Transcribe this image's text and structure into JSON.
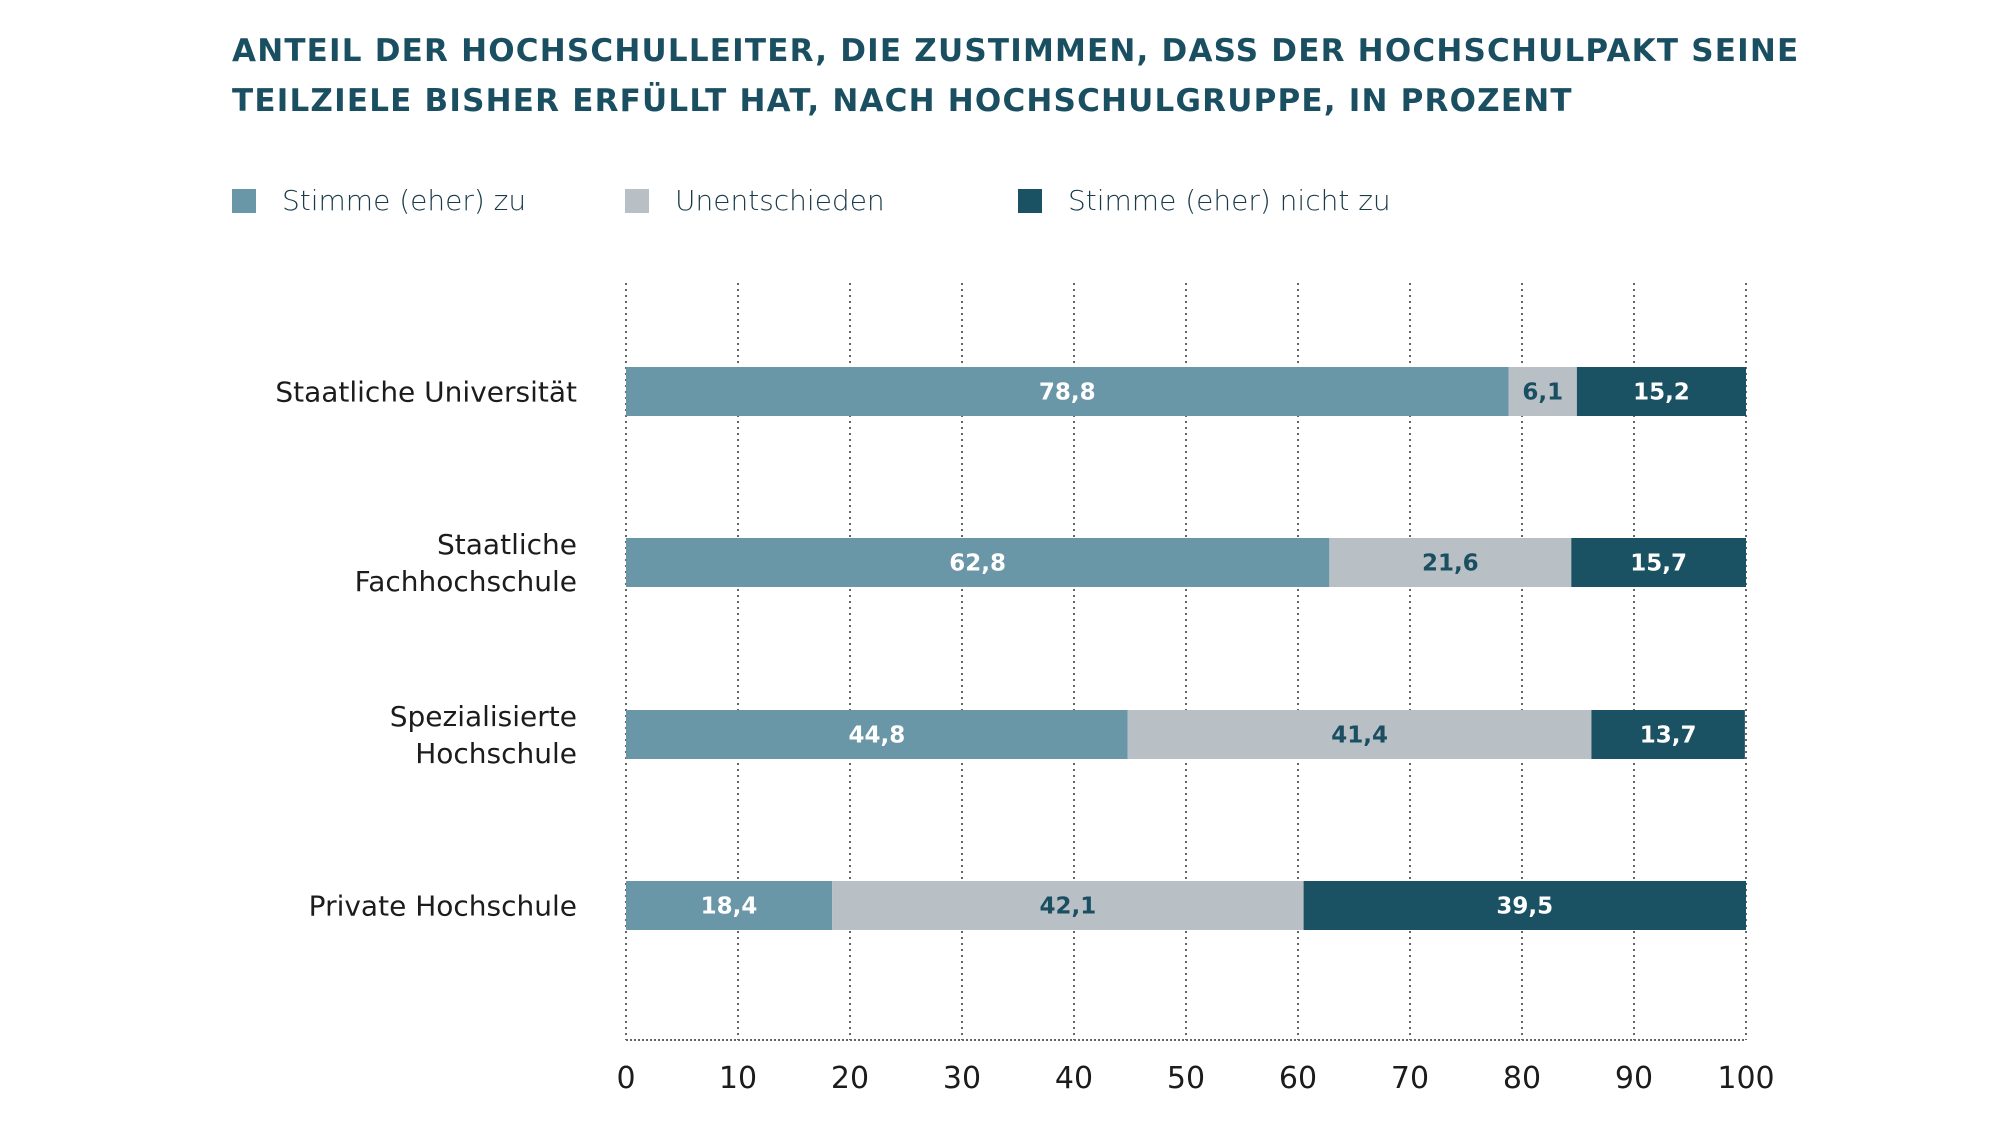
{
  "chart_data": {
    "type": "bar",
    "orientation": "horizontal",
    "stacked": true,
    "title_lines": [
      "ANTEIL DER HOCHSCHULLEITER, DIE ZUSTIMMEN, DASS DER HOCHSCHULPAKT SEINE",
      "TEILZIELE BISHER ERFÜLLT HAT, NACH HOCHSCHULGRUPPE, IN PROZENT"
    ],
    "categories": [
      [
        "Staatliche Universität"
      ],
      [
        "Staatliche",
        "Fachhochschule"
      ],
      [
        "Spezialisierte",
        "Hochschule"
      ],
      [
        "Private Hochschule"
      ]
    ],
    "series": [
      {
        "name": "Stimme (eher) zu",
        "color": "#6a97a8",
        "label_color": "#ffffff",
        "values": [
          78.8,
          62.8,
          44.8,
          18.4
        ],
        "labels": [
          "78,8",
          "62,8",
          "44,8",
          "18,4"
        ]
      },
      {
        "name": "Unentschieden",
        "color": "#b8bfc5",
        "label_color": "#1a4f62",
        "values": [
          6.1,
          21.6,
          41.4,
          42.1
        ],
        "labels": [
          "6,1",
          "21,6",
          "41,4",
          "42,1"
        ]
      },
      {
        "name": "Stimme (eher) nicht zu",
        "color": "#1a5163",
        "label_color": "#ffffff",
        "values": [
          15.2,
          15.7,
          13.7,
          39.5
        ],
        "labels": [
          "15,2",
          "15,7",
          "13,7",
          "39,5"
        ]
      }
    ],
    "xlim": [
      0,
      100
    ],
    "xticks": [
      0,
      10,
      20,
      30,
      40,
      50,
      60,
      70,
      80,
      90,
      100
    ],
    "xlabel": "",
    "ylabel": "",
    "grid": "vertical dotted",
    "legend_position": "top-left"
  }
}
